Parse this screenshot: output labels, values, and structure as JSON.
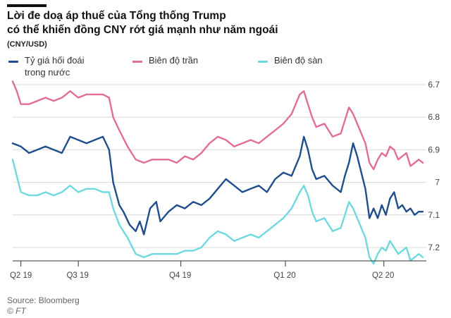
{
  "header": {
    "title_line1": "Lời đe doạ áp thuế của Tổng thống Trump",
    "title_line2": "có thể khiến đồng CNY rớt giá mạnh như năm ngoái",
    "unit": "(CNY/USD)"
  },
  "footer": {
    "source": "Source: Bloomberg",
    "credit": "© FT"
  },
  "colors": {
    "domestic": "#1f4e8c",
    "upper": "#e26d9a",
    "lower": "#6fd9e0",
    "grid": "#d9d9d9",
    "axis": "#333333"
  },
  "chart_data": {
    "type": "line",
    "title": "Lời đe doạ áp thuế của Tổng thống Trump có thể khiến đồng CNY rớt giá mạnh như năm ngoái",
    "ylabel": "(CNY/USD)",
    "y_inverted": true,
    "ylim": [
      7.25,
      6.65
    ],
    "xlim": [
      0,
      1
    ],
    "y_ticks": [
      "6.7",
      "6.8",
      "6.9",
      "7",
      "7.1",
      "7.2"
    ],
    "x_ticks": [
      {
        "label": "Q2 19",
        "x": 0.02
      },
      {
        "label": "Q3 19",
        "x": 0.16
      },
      {
        "label": "Q4 19",
        "x": 0.41
      },
      {
        "label": "Q1 20",
        "x": 0.665
      },
      {
        "label": "Q2 20",
        "x": 0.905
      }
    ],
    "grid": true,
    "legend_position": "top",
    "series": [
      {
        "name": "Tỷ giá hối đoái trong nước",
        "key": "domestic",
        "points": [
          [
            0.0,
            6.88
          ],
          [
            0.02,
            6.89
          ],
          [
            0.04,
            6.91
          ],
          [
            0.06,
            6.9
          ],
          [
            0.08,
            6.89
          ],
          [
            0.1,
            6.9
          ],
          [
            0.12,
            6.91
          ],
          [
            0.14,
            6.86
          ],
          [
            0.16,
            6.87
          ],
          [
            0.18,
            6.88
          ],
          [
            0.2,
            6.87
          ],
          [
            0.22,
            6.86
          ],
          [
            0.235,
            6.9
          ],
          [
            0.245,
            7.0
          ],
          [
            0.26,
            7.07
          ],
          [
            0.27,
            7.09
          ],
          [
            0.285,
            7.13
          ],
          [
            0.3,
            7.15
          ],
          [
            0.31,
            7.12
          ],
          [
            0.32,
            7.16
          ],
          [
            0.335,
            7.08
          ],
          [
            0.35,
            7.06
          ],
          [
            0.36,
            7.12
          ],
          [
            0.38,
            7.09
          ],
          [
            0.4,
            7.07
          ],
          [
            0.42,
            7.08
          ],
          [
            0.44,
            7.06
          ],
          [
            0.46,
            7.07
          ],
          [
            0.48,
            7.05
          ],
          [
            0.5,
            7.02
          ],
          [
            0.52,
            6.99
          ],
          [
            0.54,
            7.01
          ],
          [
            0.56,
            7.03
          ],
          [
            0.58,
            7.02
          ],
          [
            0.6,
            7.01
          ],
          [
            0.62,
            7.03
          ],
          [
            0.64,
            6.99
          ],
          [
            0.66,
            6.97
          ],
          [
            0.68,
            6.98
          ],
          [
            0.7,
            6.92
          ],
          [
            0.71,
            6.86
          ],
          [
            0.72,
            6.9
          ],
          [
            0.73,
            6.96
          ],
          [
            0.74,
            6.99
          ],
          [
            0.76,
            6.98
          ],
          [
            0.78,
            7.01
          ],
          [
            0.8,
            7.03
          ],
          [
            0.81,
            6.98
          ],
          [
            0.82,
            6.94
          ],
          [
            0.83,
            6.88
          ],
          [
            0.84,
            6.92
          ],
          [
            0.86,
            7.02
          ],
          [
            0.87,
            7.11
          ],
          [
            0.88,
            7.08
          ],
          [
            0.89,
            7.11
          ],
          [
            0.9,
            7.07
          ],
          [
            0.91,
            7.1
          ],
          [
            0.92,
            7.05
          ],
          [
            0.93,
            7.03
          ],
          [
            0.94,
            7.08
          ],
          [
            0.95,
            7.07
          ],
          [
            0.96,
            7.09
          ],
          [
            0.97,
            7.08
          ],
          [
            0.98,
            7.1
          ],
          [
            0.99,
            7.09
          ],
          [
            1.0,
            7.09
          ]
        ]
      },
      {
        "name": "Biên độ trần",
        "key": "upper",
        "points": [
          [
            0.0,
            6.69
          ],
          [
            0.01,
            6.72
          ],
          [
            0.02,
            6.76
          ],
          [
            0.04,
            6.76
          ],
          [
            0.06,
            6.75
          ],
          [
            0.08,
            6.74
          ],
          [
            0.1,
            6.75
          ],
          [
            0.12,
            6.74
          ],
          [
            0.13,
            6.73
          ],
          [
            0.14,
            6.72
          ],
          [
            0.16,
            6.74
          ],
          [
            0.18,
            6.73
          ],
          [
            0.2,
            6.73
          ],
          [
            0.22,
            6.73
          ],
          [
            0.235,
            6.74
          ],
          [
            0.245,
            6.8
          ],
          [
            0.26,
            6.84
          ],
          [
            0.28,
            6.89
          ],
          [
            0.3,
            6.93
          ],
          [
            0.32,
            6.94
          ],
          [
            0.34,
            6.93
          ],
          [
            0.36,
            6.93
          ],
          [
            0.38,
            6.93
          ],
          [
            0.4,
            6.94
          ],
          [
            0.42,
            6.92
          ],
          [
            0.44,
            6.93
          ],
          [
            0.46,
            6.91
          ],
          [
            0.48,
            6.88
          ],
          [
            0.5,
            6.86
          ],
          [
            0.52,
            6.87
          ],
          [
            0.54,
            6.89
          ],
          [
            0.56,
            6.88
          ],
          [
            0.58,
            6.87
          ],
          [
            0.6,
            6.88
          ],
          [
            0.62,
            6.86
          ],
          [
            0.64,
            6.84
          ],
          [
            0.66,
            6.82
          ],
          [
            0.68,
            6.79
          ],
          [
            0.7,
            6.73
          ],
          [
            0.71,
            6.72
          ],
          [
            0.72,
            6.76
          ],
          [
            0.73,
            6.8
          ],
          [
            0.74,
            6.83
          ],
          [
            0.76,
            6.82
          ],
          [
            0.78,
            6.86
          ],
          [
            0.8,
            6.85
          ],
          [
            0.81,
            6.81
          ],
          [
            0.82,
            6.77
          ],
          [
            0.83,
            6.79
          ],
          [
            0.84,
            6.82
          ],
          [
            0.86,
            6.88
          ],
          [
            0.87,
            6.94
          ],
          [
            0.88,
            6.96
          ],
          [
            0.89,
            6.93
          ],
          [
            0.9,
            6.91
          ],
          [
            0.91,
            6.92
          ],
          [
            0.92,
            6.89
          ],
          [
            0.93,
            6.9
          ],
          [
            0.94,
            6.93
          ],
          [
            0.95,
            6.92
          ],
          [
            0.96,
            6.91
          ],
          [
            0.97,
            6.95
          ],
          [
            0.98,
            6.94
          ],
          [
            0.99,
            6.93
          ],
          [
            1.0,
            6.94
          ]
        ]
      },
      {
        "name": "Biên độ sàn",
        "key": "lower",
        "points": [
          [
            0.0,
            6.93
          ],
          [
            0.01,
            6.98
          ],
          [
            0.02,
            7.03
          ],
          [
            0.04,
            7.04
          ],
          [
            0.06,
            7.04
          ],
          [
            0.08,
            7.03
          ],
          [
            0.1,
            7.04
          ],
          [
            0.12,
            7.03
          ],
          [
            0.13,
            7.02
          ],
          [
            0.14,
            7.01
          ],
          [
            0.16,
            7.03
          ],
          [
            0.18,
            7.02
          ],
          [
            0.2,
            7.02
          ],
          [
            0.22,
            7.03
          ],
          [
            0.235,
            7.03
          ],
          [
            0.245,
            7.08
          ],
          [
            0.26,
            7.13
          ],
          [
            0.28,
            7.17
          ],
          [
            0.3,
            7.22
          ],
          [
            0.32,
            7.23
          ],
          [
            0.34,
            7.22
          ],
          [
            0.36,
            7.22
          ],
          [
            0.38,
            7.22
          ],
          [
            0.4,
            7.22
          ],
          [
            0.42,
            7.21
          ],
          [
            0.44,
            7.21
          ],
          [
            0.46,
            7.2
          ],
          [
            0.48,
            7.17
          ],
          [
            0.5,
            7.15
          ],
          [
            0.52,
            7.16
          ],
          [
            0.54,
            7.18
          ],
          [
            0.56,
            7.17
          ],
          [
            0.58,
            7.16
          ],
          [
            0.6,
            7.17
          ],
          [
            0.62,
            7.15
          ],
          [
            0.64,
            7.13
          ],
          [
            0.66,
            7.11
          ],
          [
            0.68,
            7.08
          ],
          [
            0.7,
            7.03
          ],
          [
            0.71,
            7.01
          ],
          [
            0.72,
            7.04
          ],
          [
            0.73,
            7.09
          ],
          [
            0.74,
            7.12
          ],
          [
            0.76,
            7.11
          ],
          [
            0.78,
            7.15
          ],
          [
            0.8,
            7.14
          ],
          [
            0.81,
            7.1
          ],
          [
            0.82,
            7.06
          ],
          [
            0.83,
            7.08
          ],
          [
            0.84,
            7.11
          ],
          [
            0.86,
            7.17
          ],
          [
            0.87,
            7.23
          ],
          [
            0.88,
            7.25
          ],
          [
            0.89,
            7.22
          ],
          [
            0.9,
            7.2
          ],
          [
            0.91,
            7.21
          ],
          [
            0.92,
            7.18
          ],
          [
            0.93,
            7.2
          ],
          [
            0.94,
            7.22
          ],
          [
            0.95,
            7.21
          ],
          [
            0.96,
            7.2
          ],
          [
            0.97,
            7.24
          ],
          [
            0.98,
            7.23
          ],
          [
            0.99,
            7.22
          ],
          [
            1.0,
            7.23
          ]
        ]
      }
    ]
  },
  "legend": [
    {
      "label_line1": "Tỷ giá hối đoái",
      "label_line2": "trong nước",
      "key": "domestic"
    },
    {
      "label_line1": "Biên độ trần",
      "label_line2": "",
      "key": "upper"
    },
    {
      "label_line1": "Biên độ sàn",
      "label_line2": "",
      "key": "lower"
    }
  ]
}
